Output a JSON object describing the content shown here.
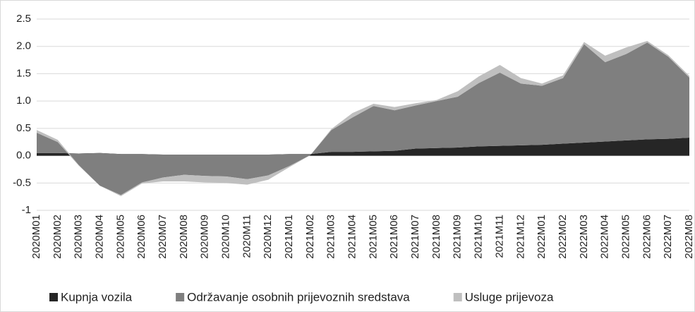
{
  "chart_data": {
    "type": "stacked_area",
    "categories": [
      "2020M01",
      "2020M02",
      "2020M03",
      "2020M04",
      "2020M05",
      "2020M06",
      "2020M07",
      "2020M08",
      "2020M09",
      "2020M10",
      "2020M11",
      "2020M12",
      "2021M01",
      "2021M02",
      "2021M03",
      "2021M04",
      "2021M05",
      "2021M06",
      "2021M07",
      "2021M08",
      "2021M09",
      "2021M10",
      "2021M11",
      "2021M12",
      "2022M01",
      "2022M02",
      "2022M03",
      "2022M04",
      "2022M05",
      "2022M06",
      "2022M07",
      "2022M08"
    ],
    "series": [
      {
        "name": "Kupnja vozila",
        "color": "#262626",
        "values": [
          0.05,
          0.05,
          0.04,
          0.05,
          0.03,
          0.03,
          0.02,
          0.02,
          0.02,
          0.02,
          0.02,
          0.02,
          0.03,
          0.03,
          0.07,
          0.07,
          0.08,
          0.09,
          0.13,
          0.14,
          0.15,
          0.17,
          0.18,
          0.19,
          0.2,
          0.22,
          0.24,
          0.26,
          0.28,
          0.3,
          0.31,
          0.33
        ]
      },
      {
        "name": "Održavanje osobnih prijevoznih sredstava",
        "color": "#7f7f7f",
        "values": [
          0.37,
          0.2,
          -0.22,
          -0.6,
          -0.75,
          -0.52,
          -0.42,
          -0.37,
          -0.39,
          -0.4,
          -0.45,
          -0.38,
          -0.22,
          -0.02,
          0.4,
          0.63,
          0.83,
          0.74,
          0.79,
          0.86,
          0.93,
          1.16,
          1.34,
          1.13,
          1.08,
          1.2,
          1.8,
          1.45,
          1.58,
          1.77,
          1.5,
          1.1
        ]
      },
      {
        "name": "Usluge prijevoza",
        "color": "#bfbfbf",
        "values": [
          0.05,
          0.04,
          0.01,
          0.0,
          -0.02,
          -0.02,
          -0.07,
          -0.12,
          -0.12,
          -0.12,
          -0.1,
          -0.08,
          -0.02,
          0.0,
          0.02,
          0.08,
          0.04,
          0.06,
          0.04,
          0.02,
          0.1,
          0.12,
          0.14,
          0.1,
          0.04,
          0.05,
          0.04,
          0.12,
          0.12,
          0.03,
          0.03,
          0.03
        ]
      }
    ],
    "ylim": [
      -1.0,
      2.5
    ],
    "yticks": [
      -1.0,
      -0.5,
      {
        "value": 0,
        "label": "0.0"
      },
      0.5,
      {
        "value": 1,
        "label": "1.0"
      },
      1.5,
      {
        "value": 2,
        "label": "2.0"
      },
      2.5
    ],
    "grid": true
  }
}
